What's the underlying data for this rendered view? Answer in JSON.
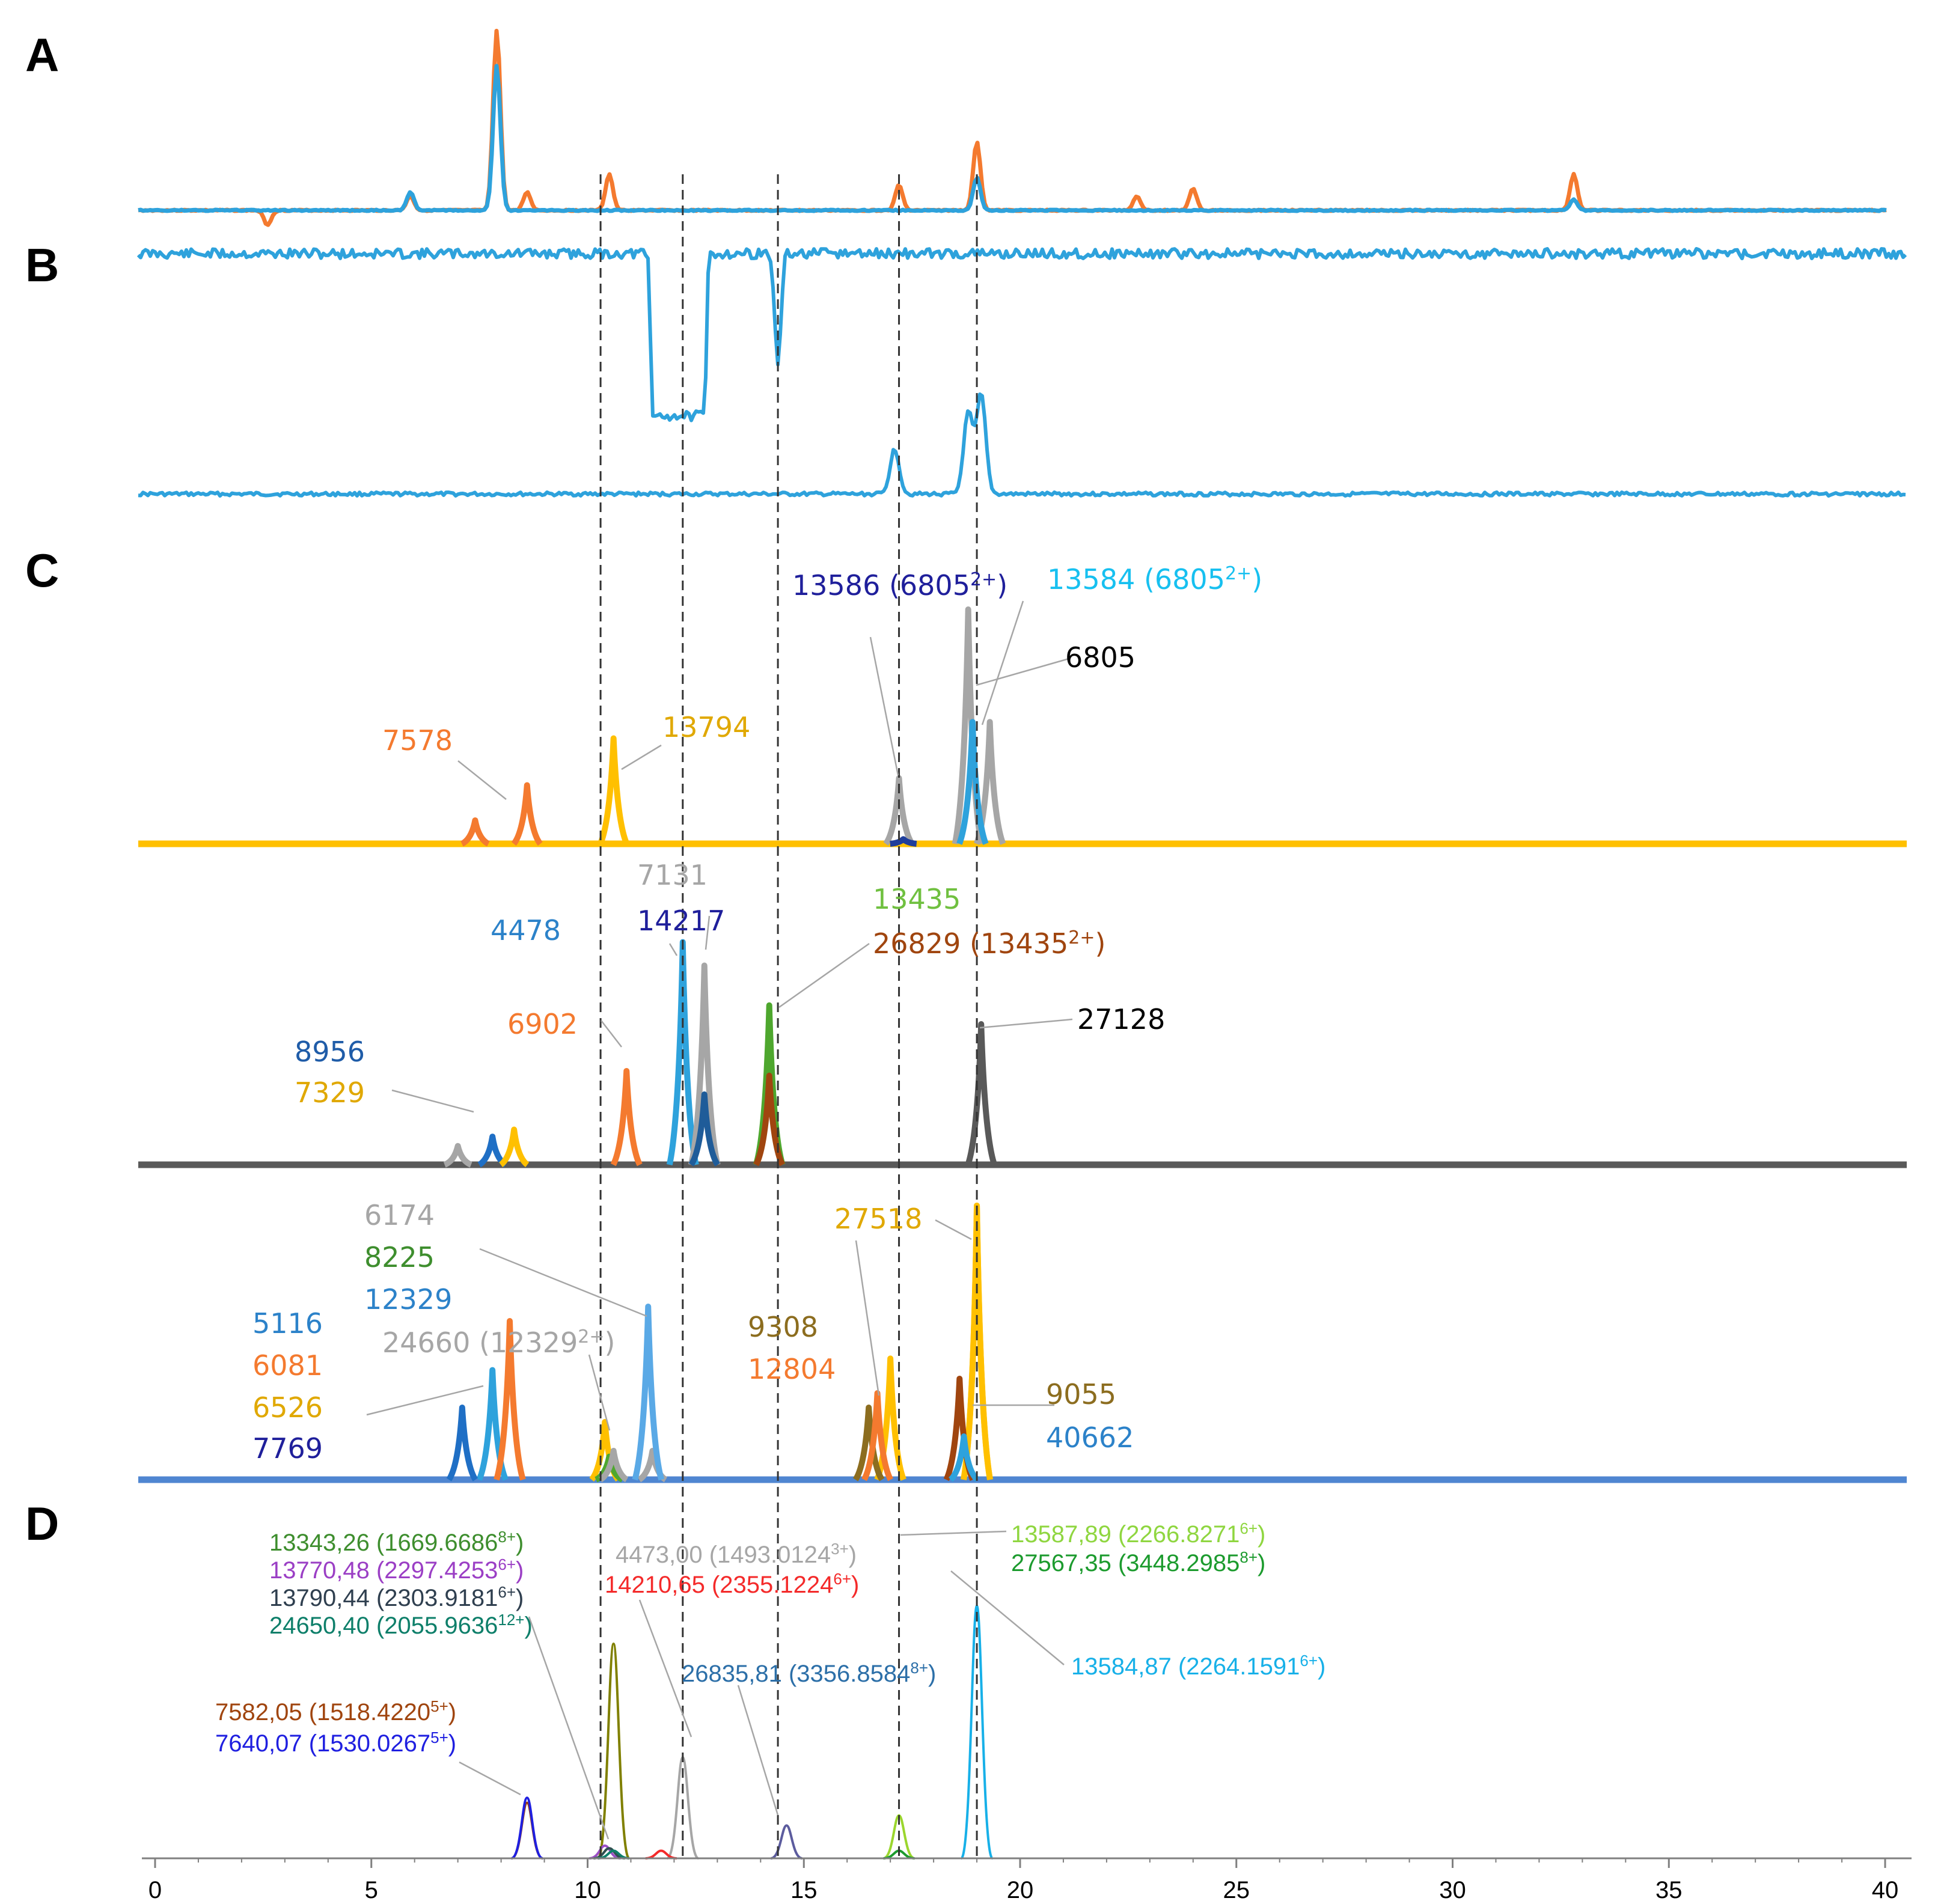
{
  "panel_labels": [
    "A",
    "B",
    "C",
    "D"
  ],
  "colors": {
    "orange": "#F47A2F",
    "blue": "#2EA2DC",
    "yellow": "#FFC000",
    "dark_gray": "#595959",
    "steel_blue": "#4F86D1",
    "gray": "#A6A6A6",
    "dash": "#333333"
  },
  "chart_data": {
    "type": "line",
    "title": "",
    "xlabel": "",
    "ylabel": "",
    "xlim": [
      0,
      40.5
    ],
    "x_ticks": [
      "0",
      "5",
      "10",
      "15",
      "20",
      "25",
      "30",
      "35",
      "40"
    ],
    "x_tick_values": [
      0,
      5,
      10,
      15,
      20,
      25,
      30,
      35,
      40
    ],
    "dashed_reference_lines_x": [
      10.3,
      12.2,
      14.4,
      17.2,
      19.0
    ],
    "panels": [
      {
        "panel": "A",
        "series": [
          {
            "name": "orange trace",
            "color": "#F47A2F",
            "peaks": [
              {
                "x": 2.6,
                "h": -0.08
              },
              {
                "x": 5.9,
                "h": 0.08
              },
              {
                "x": 7.9,
                "h": 1.0
              },
              {
                "x": 8.6,
                "h": 0.1
              },
              {
                "x": 10.5,
                "h": 0.2
              },
              {
                "x": 17.2,
                "h": 0.14
              },
              {
                "x": 19.0,
                "h": 0.38
              },
              {
                "x": 22.7,
                "h": 0.08
              },
              {
                "x": 24.0,
                "h": 0.12
              },
              {
                "x": 32.8,
                "h": 0.2
              }
            ]
          },
          {
            "name": "blue trace",
            "color": "#2EA2DC",
            "peaks": [
              {
                "x": 5.9,
                "h": 0.1
              },
              {
                "x": 7.9,
                "h": 0.8
              },
              {
                "x": 19.0,
                "h": 0.18
              },
              {
                "x": 32.8,
                "h": 0.06
              }
            ]
          }
        ]
      },
      {
        "panel": "B",
        "series": [
          {
            "name": "upper trace",
            "color": "#2EA2DC",
            "dips": [
              {
                "from": 11.5,
                "to": 12.7,
                "depth": 0.9
              },
              {
                "x": 14.4,
                "depth": 0.62
              }
            ]
          },
          {
            "name": "lower trace",
            "color": "#2EA2DC",
            "peaks": [
              {
                "x": 17.1,
                "h": 0.25
              },
              {
                "x": 18.8,
                "h": 0.45
              },
              {
                "x": 19.1,
                "h": 0.55
              }
            ]
          }
        ]
      },
      {
        "panel": "C1",
        "baseline_color": "#FFC000",
        "series": [
          {
            "name": "7578",
            "color": "#F47A2F",
            "peaks": [
              {
                "x": 7.4,
                "h": 0.1
              },
              {
                "x": 8.6,
                "h": 0.25
              }
            ]
          },
          {
            "name": "13794",
            "color": "#FFC000",
            "peaks": [
              {
                "x": 10.6,
                "h": 0.45
              }
            ]
          },
          {
            "name": "6805",
            "color": "#A6A6A6",
            "peaks": [
              {
                "x": 17.2,
                "h": 0.28
              },
              {
                "x": 18.8,
                "h": 1.0
              },
              {
                "x": 19.3,
                "h": 0.52
              }
            ]
          },
          {
            "name": "13584 (6805 2+)",
            "color": "#2EA2DC",
            "peaks": [
              {
                "x": 18.9,
                "h": 0.52
              }
            ]
          },
          {
            "name": "13586 (6805 2+)",
            "color": "#1F3E9B",
            "peaks": [
              {
                "x": 17.3,
                "h": 0.02
              }
            ]
          }
        ]
      },
      {
        "panel": "C2",
        "baseline_color": "#595959",
        "series": [
          {
            "name": "4478",
            "color": "#2EA2DC",
            "peaks": [
              {
                "x": 12.2,
                "h": 0.95
              }
            ]
          },
          {
            "name": "7131",
            "color": "#A6A6A6",
            "peaks": [
              {
                "x": 7.0,
                "h": 0.08
              },
              {
                "x": 12.7,
                "h": 0.85
              }
            ]
          },
          {
            "name": "14217",
            "color": "#1F5C99",
            "peaks": [
              {
                "x": 12.7,
                "h": 0.3
              }
            ]
          },
          {
            "name": "6902",
            "color": "#F47A2F",
            "peaks": [
              {
                "x": 10.9,
                "h": 0.4
              }
            ]
          },
          {
            "name": "8956",
            "color": "#1F6FC5",
            "peaks": [
              {
                "x": 7.8,
                "h": 0.12
              }
            ]
          },
          {
            "name": "7329",
            "color": "#FFC000",
            "peaks": [
              {
                "x": 8.3,
                "h": 0.15
              }
            ]
          },
          {
            "name": "13435",
            "color": "#4EA72E",
            "peaks": [
              {
                "x": 14.2,
                "h": 0.68
              }
            ]
          },
          {
            "name": "26829 (13435 2+)",
            "color": "#A0450F",
            "peaks": [
              {
                "x": 14.2,
                "h": 0.38
              }
            ]
          },
          {
            "name": "27128",
            "color": "#595959",
            "peaks": [
              {
                "x": 19.1,
                "h": 0.6
              }
            ]
          }
        ]
      },
      {
        "panel": "C3",
        "baseline_color": "#4F86D1",
        "series": [
          {
            "name": "5116",
            "color": "#2EA2DC",
            "peaks": [
              {
                "x": 7.8,
                "h": 0.38
              }
            ]
          },
          {
            "name": "6081",
            "color": "#F47A2F",
            "peaks": [
              {
                "x": 8.2,
                "h": 0.55
              }
            ]
          },
          {
            "name": "6526",
            "color": "#FFC000",
            "peaks": [
              {
                "x": 10.4,
                "h": 0.2
              },
              {
                "x": 17.0,
                "h": 0.42
              },
              {
                "x": 19.0,
                "h": 0.95
              }
            ]
          },
          {
            "name": "7769",
            "color": "#1F6FC5",
            "peaks": [
              {
                "x": 7.1,
                "h": 0.25
              }
            ]
          },
          {
            "name": "6174",
            "color": "#A6A6A6",
            "peaks": [
              {
                "x": 11.5,
                "h": 0.1
              }
            ]
          },
          {
            "name": "8225",
            "color": "#4EA72E",
            "peaks": [
              {
                "x": 10.5,
                "h": 0.08
              }
            ]
          },
          {
            "name": "12329",
            "color": "#5AA9E6",
            "peaks": [
              {
                "x": 11.4,
                "h": 0.6
              }
            ]
          },
          {
            "name": "24660 (12329 2+)",
            "color": "#A6A6A6",
            "peaks": [
              {
                "x": 10.6,
                "h": 0.1
              }
            ]
          },
          {
            "name": "9308",
            "color": "#8C6D1F",
            "peaks": [
              {
                "x": 16.5,
                "h": 0.25
              }
            ]
          },
          {
            "name": "12804",
            "color": "#F47A2F",
            "peaks": [
              {
                "x": 16.7,
                "h": 0.3
              }
            ]
          },
          {
            "name": "27518",
            "color": "#FFC000",
            "peaks": [
              {
                "x": 19.0,
                "h": 0.95
              }
            ]
          },
          {
            "name": "9055",
            "color": "#A0450F",
            "peaks": [
              {
                "x": 18.6,
                "h": 0.35
              }
            ]
          },
          {
            "name": "40662",
            "color": "#2EA2DC",
            "peaks": [
              {
                "x": 18.7,
                "h": 0.15
              }
            ]
          }
        ]
      },
      {
        "panel": "D",
        "series": [
          {
            "name": "7582,05",
            "color": "#A0450F",
            "peaks": [
              {
                "x": 8.6,
                "h": 0.22
              }
            ]
          },
          {
            "name": "7640,07",
            "color": "#1F1FE0",
            "peaks": [
              {
                "x": 8.6,
                "h": 0.24
              }
            ]
          },
          {
            "name": "13343,26",
            "color": "#808000",
            "peaks": [
              {
                "x": 10.6,
                "h": 0.85
              }
            ]
          },
          {
            "name": "13770,48",
            "color": "#9B4FC5",
            "peaks": [
              {
                "x": 10.4,
                "h": 0.05
              }
            ]
          },
          {
            "name": "13790,44",
            "color": "#2F4F4F",
            "peaks": [
              {
                "x": 10.5,
                "h": 0.04
              }
            ]
          },
          {
            "name": "24650,40",
            "color": "#0E7F6A",
            "peaks": [
              {
                "x": 10.6,
                "h": 0.03
              }
            ]
          },
          {
            "name": "4473,00",
            "color": "#A6A6A6",
            "peaks": [
              {
                "x": 12.2,
                "h": 0.4
              }
            ]
          },
          {
            "name": "14210,65",
            "color": "#F42A2A",
            "peaks": [
              {
                "x": 11.7,
                "h": 0.03
              }
            ]
          },
          {
            "name": "26835,81",
            "color": "#5C5C9E",
            "peaks": [
              {
                "x": 14.6,
                "h": 0.13
              }
            ]
          },
          {
            "name": "13587,89",
            "color": "#9BD62E",
            "peaks": [
              {
                "x": 17.2,
                "h": 0.17
              }
            ]
          },
          {
            "name": "27567,35",
            "color": "#1C9B2E",
            "peaks": [
              {
                "x": 17.2,
                "h": 0.03
              }
            ]
          },
          {
            "name": "13584,87",
            "color": "#17B0E8",
            "peaks": [
              {
                "x": 19.0,
                "h": 1.0
              }
            ]
          }
        ]
      }
    ],
    "annotations": [
      {
        "panel": "C1",
        "text": "13586 (6805",
        "sup": "2+",
        "tail": ")",
        "color": "#1F1F9B"
      },
      {
        "panel": "C1",
        "text": "13584 (6805",
        "sup": "2+",
        "tail": ")",
        "color": "#17C0F0"
      },
      {
        "panel": "C1",
        "text": "6805",
        "sup": "",
        "tail": "",
        "color": "#000000"
      },
      {
        "panel": "C1",
        "text": "7578",
        "sup": "",
        "tail": "",
        "color": "#F47A2F"
      },
      {
        "panel": "C1",
        "text": "13794",
        "sup": "",
        "tail": "",
        "color": "#E0A800"
      },
      {
        "panel": "C2",
        "text": "7131",
        "sup": "",
        "tail": "",
        "color": "#A6A6A6"
      },
      {
        "panel": "C2",
        "text": "14217",
        "sup": "",
        "tail": "",
        "color": "#1F1F9B"
      },
      {
        "panel": "C2",
        "text": "4478",
        "sup": "",
        "tail": "",
        "color": "#2C82C9"
      },
      {
        "panel": "C2",
        "text": "13435",
        "sup": "",
        "tail": "",
        "color": "#70C040"
      },
      {
        "panel": "C2",
        "text": "26829 (13435",
        "sup": "2+",
        "tail": ")",
        "color": "#A0450F"
      },
      {
        "panel": "C2",
        "text": "6902",
        "sup": "",
        "tail": "",
        "color": "#F47A2F"
      },
      {
        "panel": "C2",
        "text": "27128",
        "sup": "",
        "tail": "",
        "color": "#000000"
      },
      {
        "panel": "C2",
        "text": "8956",
        "sup": "",
        "tail": "",
        "color": "#1F5CA8"
      },
      {
        "panel": "C2",
        "text": "7329",
        "sup": "",
        "tail": "",
        "color": "#E0A800"
      },
      {
        "panel": "C3",
        "text": "6174",
        "sup": "",
        "tail": "",
        "color": "#A6A6A6"
      },
      {
        "panel": "C3",
        "text": "8225",
        "sup": "",
        "tail": "",
        "color": "#3E8E2E"
      },
      {
        "panel": "C3",
        "text": "12329",
        "sup": "",
        "tail": "",
        "color": "#2C82C9"
      },
      {
        "panel": "C3",
        "text": "27518",
        "sup": "",
        "tail": "",
        "color": "#E0A800"
      },
      {
        "panel": "C3",
        "text": "5116",
        "sup": "",
        "tail": "",
        "color": "#2C82C9"
      },
      {
        "panel": "C3",
        "text": "9308",
        "sup": "",
        "tail": "",
        "color": "#8C6D1F"
      },
      {
        "panel": "C3",
        "text": "6081",
        "sup": "",
        "tail": "",
        "color": "#F47A2F"
      },
      {
        "panel": "C3",
        "text": "24660 (12329",
        "sup": "2+",
        "tail": ")",
        "color": "#A6A6A6"
      },
      {
        "panel": "C3",
        "text": "12804",
        "sup": "",
        "tail": "",
        "color": "#F47A2F"
      },
      {
        "panel": "C3",
        "text": "6526",
        "sup": "",
        "tail": "",
        "color": "#E0A800"
      },
      {
        "panel": "C3",
        "text": "9055",
        "sup": "",
        "tail": "",
        "color": "#8C6D1F"
      },
      {
        "panel": "C3",
        "text": "7769",
        "sup": "",
        "tail": "",
        "color": "#1F1F9B"
      },
      {
        "panel": "C3",
        "text": "40662",
        "sup": "",
        "tail": "",
        "color": "#2C82C9"
      },
      {
        "panel": "D",
        "text": "13343,26 (1669.6686",
        "sup": "8+",
        "tail": ")",
        "color": "#3E8E2E"
      },
      {
        "panel": "D",
        "text": "13770,48 (2297.4253",
        "sup": "6+",
        "tail": ")",
        "color": "#9B3FC5"
      },
      {
        "panel": "D",
        "text": "13790,44 (2303.9181",
        "sup": "6+",
        "tail": ")",
        "color": "#2F3F4F"
      },
      {
        "panel": "D",
        "text": "24650,40 (2055.9636",
        "sup": "12+",
        "tail": ")",
        "color": "#0E7F6A"
      },
      {
        "panel": "D",
        "text": "4473,00 (1493.0124",
        "sup": "3+",
        "tail": ")",
        "color": "#A6A6A6"
      },
      {
        "panel": "D",
        "text": "14210,65 (2355.1224",
        "sup": "6+",
        "tail": ")",
        "color": "#F42A2A"
      },
      {
        "panel": "D",
        "text": "13587,89 (2266.8271",
        "sup": "6+",
        "tail": ")",
        "color": "#8FD640"
      },
      {
        "panel": "D",
        "text": "27567,35 (3448.2985",
        "sup": "8+",
        "tail": ")",
        "color": "#1C9B2E"
      },
      {
        "panel": "D",
        "text": "13584,87 (2264.1591",
        "sup": "6+",
        "tail": ")",
        "color": "#17B0E8"
      },
      {
        "panel": "D",
        "text": "26835,81 (3356.8584",
        "sup": "8+",
        "tail": ")",
        "color": "#2C6FA8"
      },
      {
        "panel": "D",
        "text": "7582,05 (1518.4220",
        "sup": "5+",
        "tail": ")",
        "color": "#A0450F"
      },
      {
        "panel": "D",
        "text": "7640,07 (1530.0267",
        "sup": "5+",
        "tail": ")",
        "color": "#1F1FE0"
      }
    ]
  }
}
